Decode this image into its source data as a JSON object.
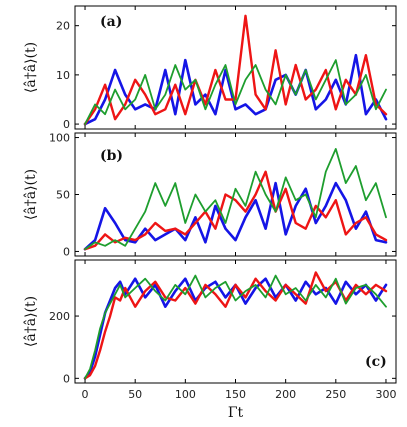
{
  "chart_data": [
    {
      "type": "line",
      "panel_label": "(a)",
      "ylabel": "⟨â†â⟩(t)",
      "xlabel": "",
      "xlim": [
        -10,
        310
      ],
      "ylim": [
        -1,
        24
      ],
      "xticks": [
        0,
        50,
        100,
        150,
        200,
        250,
        300
      ],
      "yticks": [
        0,
        10,
        20
      ],
      "grid": false,
      "series": [
        {
          "color": "#1515e6",
          "stroke": 2.6,
          "x": [
            0,
            10,
            20,
            30,
            40,
            50,
            60,
            70,
            80,
            90,
            100,
            110,
            120,
            130,
            140,
            150,
            160,
            170,
            180,
            190,
            200,
            210,
            220,
            230,
            240,
            250,
            260,
            270,
            280,
            290,
            300
          ],
          "values": [
            0,
            1,
            5,
            11,
            6,
            3,
            4,
            3,
            11,
            2,
            13,
            4,
            6,
            2,
            11,
            3,
            4,
            2,
            3,
            9,
            10,
            6,
            11,
            3,
            5,
            9,
            4,
            14,
            2,
            5,
            1
          ]
        },
        {
          "color": "#ee1515",
          "stroke": 2.4,
          "x": [
            0,
            10,
            20,
            30,
            40,
            50,
            60,
            70,
            80,
            90,
            100,
            110,
            120,
            130,
            140,
            150,
            160,
            170,
            180,
            190,
            200,
            210,
            220,
            230,
            240,
            250,
            260,
            270,
            280,
            290,
            300
          ],
          "values": [
            0,
            3,
            8,
            1,
            4,
            9,
            6,
            2,
            3,
            8,
            2,
            9,
            4,
            11,
            5,
            5,
            22,
            6,
            3,
            15,
            4,
            12,
            5,
            7,
            11,
            3,
            9,
            6,
            14,
            4,
            2
          ]
        },
        {
          "color": "#1e9e2e",
          "stroke": 1.8,
          "x": [
            0,
            10,
            20,
            30,
            40,
            50,
            60,
            70,
            80,
            90,
            100,
            110,
            120,
            130,
            140,
            150,
            160,
            170,
            180,
            190,
            200,
            210,
            220,
            230,
            240,
            250,
            260,
            270,
            280,
            290,
            300
          ],
          "values": [
            0,
            4,
            2,
            7,
            3,
            5,
            10,
            3,
            6,
            12,
            7,
            9,
            3,
            8,
            12,
            4,
            9,
            12,
            7,
            4,
            10,
            6,
            11,
            5,
            9,
            13,
            4,
            6,
            10,
            3,
            7
          ]
        }
      ]
    },
    {
      "type": "line",
      "panel_label": "(b)",
      "ylabel": "⟨â†â⟩(t)",
      "xlabel": "",
      "xlim": [
        -10,
        310
      ],
      "ylim": [
        -4,
        104
      ],
      "xticks": [
        0,
        50,
        100,
        150,
        200,
        250,
        300
      ],
      "yticks": [
        0,
        50,
        100
      ],
      "grid": false,
      "series": [
        {
          "color": "#1515e6",
          "stroke": 2.6,
          "x": [
            0,
            10,
            20,
            30,
            40,
            50,
            60,
            70,
            80,
            90,
            100,
            110,
            120,
            130,
            140,
            150,
            160,
            170,
            180,
            190,
            200,
            210,
            220,
            230,
            240,
            250,
            260,
            270,
            280,
            290,
            300
          ],
          "values": [
            2,
            10,
            38,
            25,
            10,
            8,
            20,
            10,
            15,
            20,
            10,
            30,
            8,
            40,
            20,
            10,
            30,
            45,
            20,
            60,
            15,
            40,
            55,
            25,
            40,
            60,
            45,
            20,
            35,
            10,
            8
          ]
        },
        {
          "color": "#ee1515",
          "stroke": 2.4,
          "x": [
            0,
            10,
            20,
            30,
            40,
            50,
            60,
            70,
            80,
            90,
            100,
            110,
            120,
            130,
            140,
            150,
            160,
            170,
            180,
            190,
            200,
            210,
            220,
            230,
            240,
            250,
            260,
            270,
            280,
            290,
            300
          ],
          "values": [
            2,
            5,
            15,
            8,
            12,
            10,
            15,
            25,
            18,
            20,
            15,
            25,
            35,
            20,
            50,
            45,
            35,
            50,
            70,
            35,
            55,
            25,
            20,
            40,
            30,
            45,
            15,
            25,
            30,
            15,
            10
          ]
        },
        {
          "color": "#1e9e2e",
          "stroke": 1.8,
          "x": [
            0,
            10,
            20,
            30,
            40,
            50,
            60,
            70,
            80,
            90,
            100,
            110,
            120,
            130,
            140,
            150,
            160,
            170,
            180,
            190,
            200,
            210,
            220,
            230,
            240,
            250,
            260,
            270,
            280,
            290,
            300
          ],
          "values": [
            2,
            8,
            5,
            10,
            5,
            20,
            35,
            60,
            40,
            60,
            25,
            50,
            35,
            45,
            25,
            55,
            40,
            70,
            50,
            35,
            65,
            45,
            50,
            30,
            70,
            90,
            60,
            75,
            45,
            60,
            30
          ]
        }
      ]
    },
    {
      "type": "line",
      "panel_label": "(c)",
      "ylabel": "⟨â†â⟩(t)",
      "xlabel": "Γt",
      "xlim": [
        -10,
        310
      ],
      "ylim": [
        -15,
        380
      ],
      "xticks": [
        0,
        50,
        100,
        150,
        200,
        250,
        300
      ],
      "yticks": [
        0,
        200
      ],
      "grid": false,
      "series": [
        {
          "color": "#1515e6",
          "stroke": 2.6,
          "x": [
            0,
            5,
            10,
            15,
            20,
            25,
            30,
            35,
            40,
            50,
            60,
            70,
            80,
            90,
            100,
            110,
            120,
            130,
            140,
            150,
            160,
            170,
            180,
            190,
            200,
            210,
            220,
            230,
            240,
            250,
            260,
            270,
            280,
            290,
            300
          ],
          "values": [
            0,
            20,
            70,
            140,
            210,
            250,
            290,
            310,
            270,
            320,
            260,
            300,
            230,
            280,
            320,
            250,
            290,
            310,
            260,
            300,
            240,
            290,
            320,
            260,
            300,
            250,
            310,
            270,
            290,
            240,
            310,
            270,
            300,
            250,
            300
          ]
        },
        {
          "color": "#ee1515",
          "stroke": 2.4,
          "x": [
            0,
            5,
            10,
            15,
            20,
            25,
            30,
            35,
            40,
            50,
            60,
            70,
            80,
            90,
            100,
            110,
            120,
            130,
            140,
            150,
            160,
            170,
            180,
            190,
            200,
            210,
            220,
            230,
            240,
            250,
            260,
            270,
            280,
            290,
            300
          ],
          "values": [
            0,
            10,
            40,
            90,
            150,
            200,
            260,
            250,
            290,
            230,
            280,
            310,
            260,
            250,
            290,
            240,
            300,
            270,
            230,
            300,
            260,
            320,
            280,
            250,
            300,
            270,
            240,
            340,
            280,
            310,
            250,
            300,
            270,
            300,
            280
          ]
        },
        {
          "color": "#1e9e2e",
          "stroke": 1.8,
          "x": [
            0,
            5,
            10,
            15,
            20,
            25,
            30,
            35,
            40,
            50,
            60,
            70,
            80,
            90,
            100,
            110,
            120,
            130,
            140,
            150,
            160,
            170,
            180,
            190,
            200,
            210,
            220,
            230,
            240,
            250,
            260,
            270,
            280,
            290,
            300
          ],
          "values": [
            0,
            30,
            90,
            160,
            210,
            240,
            270,
            300,
            260,
            290,
            320,
            280,
            250,
            300,
            270,
            330,
            260,
            290,
            310,
            250,
            280,
            300,
            260,
            330,
            270,
            290,
            250,
            300,
            260,
            320,
            240,
            290,
            300,
            270,
            230
          ]
        }
      ]
    }
  ]
}
